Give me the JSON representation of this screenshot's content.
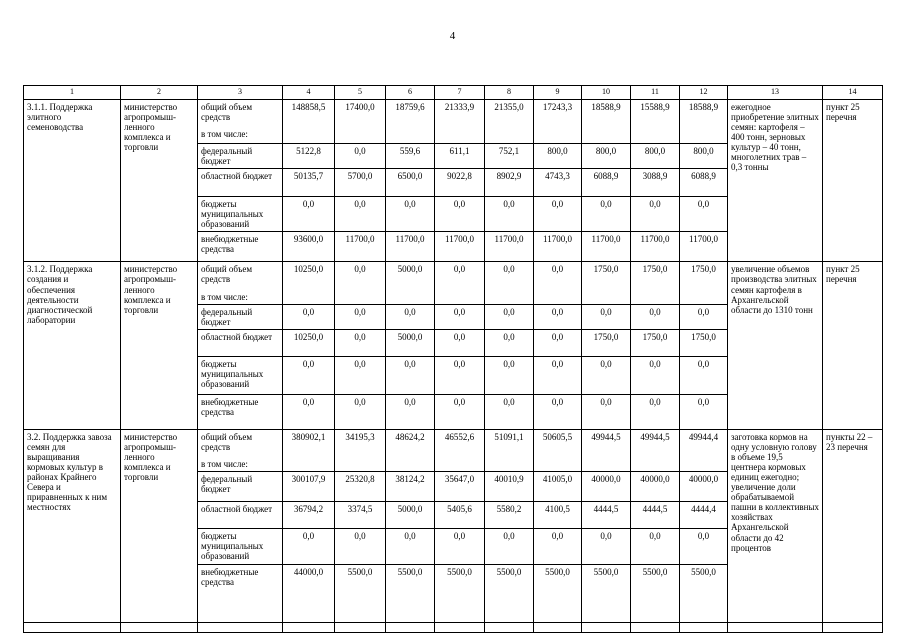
{
  "page": {
    "number": "4"
  },
  "table": {
    "column_numbers": [
      "1",
      "2",
      "3",
      "4",
      "5",
      "6",
      "7",
      "8",
      "9",
      "10",
      "11",
      "12",
      "13",
      "14"
    ],
    "blocks": [
      {
        "name": "3.1.1. Поддержка элитного семеноводства",
        "executor": "министерство агропромыш-ленного комплекса и торговли",
        "rows": [
          {
            "label": "общий объем средств",
            "note": "в том числе:",
            "values": [
              "148858,5",
              "17400,0",
              "18759,6",
              "21333,9",
              "21355,0",
              "17243,3",
              "18588,9",
              "15588,9",
              "18588,9"
            ]
          },
          {
            "label": "федеральный бюджет",
            "values": [
              "5122,8",
              "0,0",
              "559,6",
              "611,1",
              "752,1",
              "800,0",
              "800,0",
              "800,0",
              "800,0"
            ]
          },
          {
            "label": "областной бюджет",
            "values": [
              "50135,7",
              "5700,0",
              "6500,0",
              "9022,8",
              "8902,9",
              "4743,3",
              "6088,9",
              "3088,9",
              "6088,9"
            ]
          },
          {
            "label": "бюджеты муниципальных образований",
            "values": [
              "0,0",
              "0,0",
              "0,0",
              "0,0",
              "0,0",
              "0,0",
              "0,0",
              "0,0",
              "0,0"
            ]
          },
          {
            "label": "внебюджетные средства",
            "values": [
              "93600,0",
              "11700,0",
              "11700,0",
              "11700,0",
              "11700,0",
              "11700,0",
              "11700,0",
              "11700,0",
              "11700,0"
            ]
          }
        ],
        "result": "ежегодное приобретение элитных семян: картофеля – 400 тонн, зерновых культур – 40 тонн, многолетних трав – 0,3 тонны",
        "reference": "пункт 25 перечня"
      },
      {
        "name": "3.1.2. Поддержка создания и обеспечения деятельности диагностической лаборатории",
        "executor": "министерство агропромыш-ленного комплекса и торговли",
        "rows": [
          {
            "label": "общий объем средств",
            "note": "в том числе:",
            "values": [
              "10250,0",
              "0,0",
              "5000,0",
              "0,0",
              "0,0",
              "0,0",
              "1750,0",
              "1750,0",
              "1750,0"
            ]
          },
          {
            "label": "федеральный бюджет",
            "values": [
              "0,0",
              "0,0",
              "0,0",
              "0,0",
              "0,0",
              "0,0",
              "0,0",
              "0,0",
              "0,0"
            ]
          },
          {
            "label": "областной бюджет",
            "values": [
              "10250,0",
              "0,0",
              "5000,0",
              "0,0",
              "0,0",
              "0,0",
              "1750,0",
              "1750,0",
              "1750,0"
            ]
          },
          {
            "label": "бюджеты муниципальных образований",
            "values": [
              "0,0",
              "0,0",
              "0,0",
              "0,0",
              "0,0",
              "0,0",
              "0,0",
              "0,0",
              "0,0"
            ]
          },
          {
            "label": "внебюджетные средства",
            "values": [
              "0,0",
              "0,0",
              "0,0",
              "0,0",
              "0,0",
              "0,0",
              "0,0",
              "0,0",
              "0,0"
            ]
          }
        ],
        "result": "увеличение объемов производства элитных семян картофеля в Архангельской области до 1310 тонн",
        "reference": "пункт 25 перечня"
      },
      {
        "name": "3.2. Поддержка завоза семян для выращивания кормовых культур в районах Крайнего Севера и приравненных к ним местностях",
        "executor": "министерство агропромыш-ленного комплекса и торговли",
        "rows": [
          {
            "label": "общий объем средств",
            "note": "в том числе:",
            "values": [
              "380902,1",
              "34195,3",
              "48624,2",
              "46552,6",
              "51091,1",
              "50605,5",
              "49944,5",
              "49944,5",
              "49944,4"
            ]
          },
          {
            "label": "федеральный бюджет",
            "values": [
              "300107,9",
              "25320,8",
              "38124,2",
              "35647,0",
              "40010,9",
              "41005,0",
              "40000,0",
              "40000,0",
              "40000,0"
            ]
          },
          {
            "label": "областной бюджет",
            "values": [
              "36794,2",
              "3374,5",
              "5000,0",
              "5405,6",
              "5580,2",
              "4100,5",
              "4444,5",
              "4444,5",
              "4444,4"
            ]
          },
          {
            "label": "бюджеты муниципальных образований",
            "values": [
              "0,0",
              "0,0",
              "0,0",
              "0,0",
              "0,0",
              "0,0",
              "0,0",
              "0,0",
              "0,0"
            ]
          },
          {
            "label": "внебюджетные средства",
            "values": [
              "44000,0",
              "5500,0",
              "5500,0",
              "5500,0",
              "5500,0",
              "5500,0",
              "5500,0",
              "5500,0",
              "5500,0"
            ]
          }
        ],
        "result": "заготовка кормов на одну условную голову в объеме 19,5 центнера кормовых единиц ежегодно; увеличение доли обрабатываемой пашни в коллективных хозяйствах Архангельской области до 42 процентов",
        "reference": "пункты 22 – 23 перечня"
      }
    ]
  }
}
